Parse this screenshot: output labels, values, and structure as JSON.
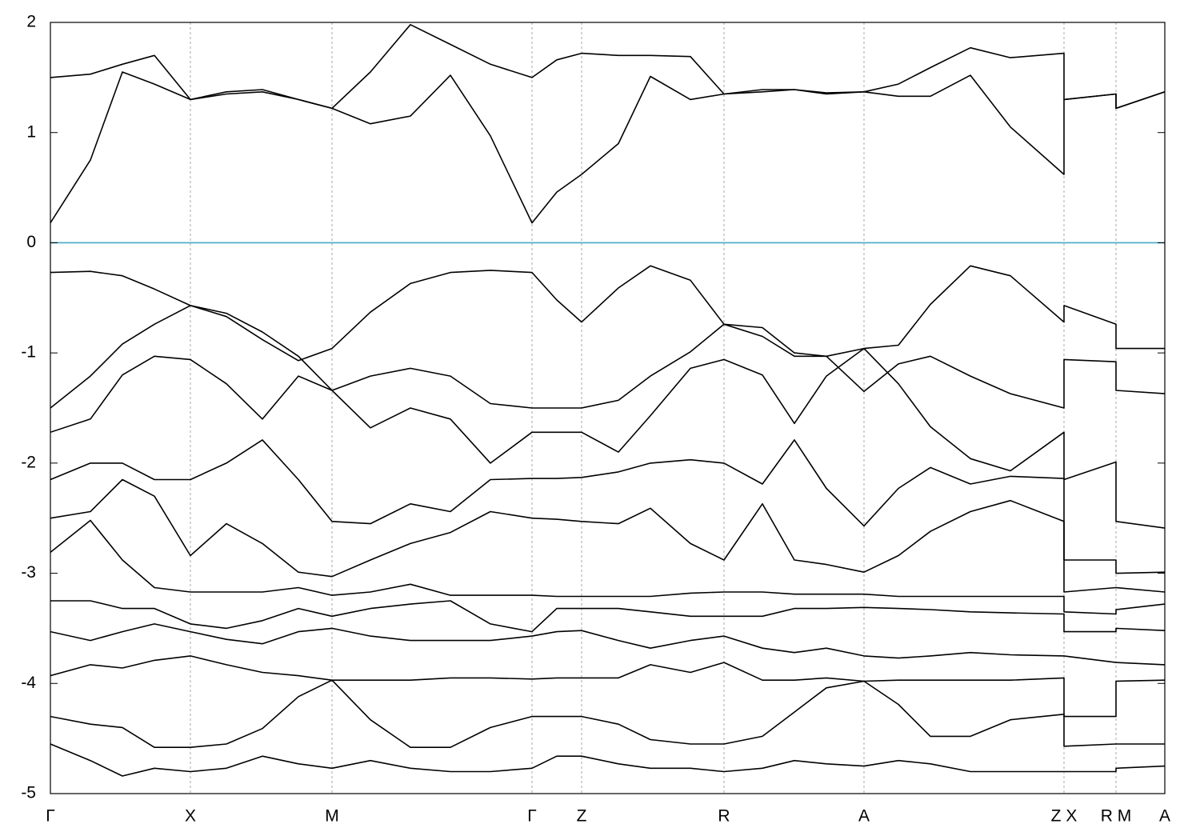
{
  "chart_data": {
    "type": "line",
    "color": "#000000",
    "grid": true,
    "reference_line": {
      "value": 0,
      "color": "#45a9c6"
    },
    "xlim": [
      0,
      13.93
    ],
    "ylim": [
      -5,
      2
    ],
    "yticks": [
      -5,
      -4,
      -3,
      -2,
      -1,
      0,
      1,
      2
    ],
    "xticks": [
      {
        "value": 0,
        "label": "Γ"
      },
      {
        "value": 1.75,
        "label": "X"
      },
      {
        "value": 3.52,
        "label": "M"
      },
      {
        "value": 6.02,
        "label": "Γ"
      },
      {
        "value": 6.64,
        "label": "Z"
      },
      {
        "value": 8.42,
        "label": "R"
      },
      {
        "value": 10.17,
        "label": "A"
      },
      {
        "value": 12.67,
        "label": "Z X"
      },
      {
        "value": 13.32,
        "label": "R M"
      },
      {
        "value": 13.93,
        "label": "A"
      }
    ],
    "x": [
      0,
      0.5,
      0.9,
      1.3,
      1.75,
      2.2,
      2.65,
      3.1,
      3.52,
      4.0,
      4.5,
      5.0,
      5.5,
      6.02,
      6.33,
      6.64,
      7.1,
      7.5,
      8.0,
      8.42,
      8.9,
      9.3,
      9.7,
      10.17,
      10.6,
      11.0,
      11.5,
      12.0,
      12.67,
      12.67,
      13.32,
      13.32,
      13.93
    ],
    "series": [
      {
        "values": [
          1.5,
          1.53,
          1.62,
          1.7,
          1.3,
          1.37,
          1.39,
          1.3,
          1.22,
          1.55,
          1.98,
          1.8,
          1.62,
          1.5,
          1.66,
          1.72,
          1.7,
          1.7,
          1.69,
          1.35,
          1.39,
          1.39,
          1.36,
          1.37,
          1.44,
          1.59,
          1.77,
          1.68,
          1.72,
          1.3,
          1.35,
          1.22,
          1.37
        ]
      },
      {
        "values": [
          0.18,
          0.75,
          1.55,
          1.44,
          1.3,
          1.35,
          1.37,
          1.3,
          1.22,
          1.08,
          1.15,
          1.52,
          0.97,
          0.18,
          0.46,
          0.62,
          0.9,
          1.51,
          1.3,
          1.35,
          1.37,
          1.39,
          1.35,
          1.37,
          1.33,
          1.33,
          1.52,
          1.05,
          0.62,
          1.3,
          1.35,
          1.22,
          1.37
        ]
      },
      {
        "values": [
          -0.27,
          -0.26,
          -0.3,
          -0.42,
          -0.57,
          -0.67,
          -0.88,
          -1.07,
          -0.96,
          -0.63,
          -0.37,
          -0.27,
          -0.25,
          -0.27,
          -0.52,
          -0.72,
          -0.41,
          -0.21,
          -0.34,
          -0.74,
          -0.85,
          -1.03,
          -1.03,
          -0.96,
          -0.93,
          -0.56,
          -0.21,
          -0.3,
          -0.72,
          -0.57,
          -0.74,
          -0.96,
          -0.96
        ]
      },
      {
        "values": [
          -1.5,
          -1.21,
          -0.92,
          -0.74,
          -0.57,
          -0.64,
          -0.81,
          -1.03,
          -1.34,
          -1.21,
          -1.14,
          -1.21,
          -1.46,
          -1.5,
          -1.5,
          -1.5,
          -1.43,
          -1.21,
          -0.99,
          -0.74,
          -0.77,
          -1.0,
          -1.03,
          -1.35,
          -1.1,
          -1.03,
          -1.21,
          -1.37,
          -1.5,
          -1.06,
          -1.08,
          -1.34,
          -1.37
        ]
      },
      {
        "values": [
          -1.72,
          -1.6,
          -1.2,
          -1.03,
          -1.06,
          -1.28,
          -1.6,
          -1.21,
          -1.34,
          -1.68,
          -1.5,
          -1.6,
          -2.0,
          -1.72,
          -1.72,
          -1.72,
          -1.9,
          -1.57,
          -1.14,
          -1.06,
          -1.2,
          -1.64,
          -1.21,
          -0.96,
          -1.28,
          -1.67,
          -1.96,
          -2.07,
          -1.72,
          -2.15,
          -1.99,
          -2.53,
          -2.59
        ]
      },
      {
        "values": [
          -2.15,
          -2.0,
          -2.0,
          -2.15,
          -2.15,
          -2.0,
          -1.79,
          -2.15,
          -2.53,
          -2.55,
          -2.37,
          -2.44,
          -2.15,
          -2.14,
          -2.14,
          -2.13,
          -2.08,
          -2.0,
          -1.97,
          -2.0,
          -2.19,
          -1.79,
          -2.23,
          -2.57,
          -2.23,
          -2.04,
          -2.19,
          -2.12,
          -2.14,
          -2.88,
          -2.88,
          -3.0,
          -2.99
        ]
      },
      {
        "values": [
          -2.5,
          -2.44,
          -2.15,
          -2.3,
          -2.84,
          -2.55,
          -2.73,
          -2.99,
          -3.03,
          -2.88,
          -2.73,
          -2.63,
          -2.44,
          -2.5,
          -2.51,
          -2.53,
          -2.55,
          -2.41,
          -2.73,
          -2.88,
          -2.37,
          -2.88,
          -2.92,
          -2.99,
          -2.84,
          -2.62,
          -2.44,
          -2.34,
          -2.53,
          -3.17,
          -3.13,
          -3.13,
          -3.17
        ]
      },
      {
        "values": [
          -2.81,
          -2.52,
          -2.88,
          -3.13,
          -3.17,
          -3.17,
          -3.17,
          -3.13,
          -3.2,
          -3.17,
          -3.1,
          -3.2,
          -3.2,
          -3.2,
          -3.21,
          -3.21,
          -3.21,
          -3.21,
          -3.18,
          -3.17,
          -3.17,
          -3.19,
          -3.19,
          -3.19,
          -3.21,
          -3.21,
          -3.21,
          -3.21,
          -3.21,
          -3.35,
          -3.37,
          -3.33,
          -3.28
        ]
      },
      {
        "values": [
          -3.25,
          -3.25,
          -3.32,
          -3.32,
          -3.46,
          -3.5,
          -3.43,
          -3.32,
          -3.39,
          -3.32,
          -3.28,
          -3.25,
          -3.46,
          -3.53,
          -3.32,
          -3.32,
          -3.32,
          -3.35,
          -3.39,
          -3.39,
          -3.39,
          -3.32,
          -3.32,
          -3.31,
          -3.32,
          -3.33,
          -3.35,
          -3.36,
          -3.37,
          -3.53,
          -3.53,
          -3.5,
          -3.52
        ]
      },
      {
        "values": [
          -3.53,
          -3.61,
          -3.53,
          -3.46,
          -3.53,
          -3.6,
          -3.64,
          -3.53,
          -3.5,
          -3.57,
          -3.61,
          -3.61,
          -3.61,
          -3.57,
          -3.53,
          -3.52,
          -3.61,
          -3.68,
          -3.61,
          -3.57,
          -3.68,
          -3.72,
          -3.68,
          -3.75,
          -3.77,
          -3.75,
          -3.72,
          -3.74,
          -3.75,
          -3.75,
          -3.81,
          -3.81,
          -3.83
        ]
      },
      {
        "values": [
          -3.93,
          -3.83,
          -3.86,
          -3.79,
          -3.75,
          -3.83,
          -3.9,
          -3.93,
          -3.97,
          -3.97,
          -3.97,
          -3.95,
          -3.95,
          -3.96,
          -3.95,
          -3.95,
          -3.95,
          -3.83,
          -3.9,
          -3.81,
          -3.97,
          -3.97,
          -3.95,
          -3.98,
          -3.97,
          -3.97,
          -3.97,
          -3.97,
          -3.95,
          -4.3,
          -4.3,
          -3.98,
          -3.97
        ]
      },
      {
        "values": [
          -4.3,
          -4.37,
          -4.4,
          -4.58,
          -4.58,
          -4.55,
          -4.41,
          -4.12,
          -3.97,
          -4.33,
          -4.58,
          -4.58,
          -4.4,
          -4.3,
          -4.3,
          -4.3,
          -4.37,
          -4.51,
          -4.55,
          -4.55,
          -4.48,
          -4.26,
          -4.04,
          -3.98,
          -4.19,
          -4.48,
          -4.48,
          -4.33,
          -4.28,
          -4.57,
          -4.55,
          -4.55,
          -4.55
        ]
      },
      {
        "values": [
          -4.55,
          -4.7,
          -4.84,
          -4.77,
          -4.8,
          -4.77,
          -4.66,
          -4.73,
          -4.77,
          -4.7,
          -4.77,
          -4.8,
          -4.8,
          -4.77,
          -4.66,
          -4.66,
          -4.73,
          -4.77,
          -4.77,
          -4.8,
          -4.77,
          -4.7,
          -4.73,
          -4.75,
          -4.7,
          -4.73,
          -4.8,
          -4.8,
          -4.8,
          -4.8,
          -4.8,
          -4.77,
          -4.75
        ]
      }
    ]
  }
}
